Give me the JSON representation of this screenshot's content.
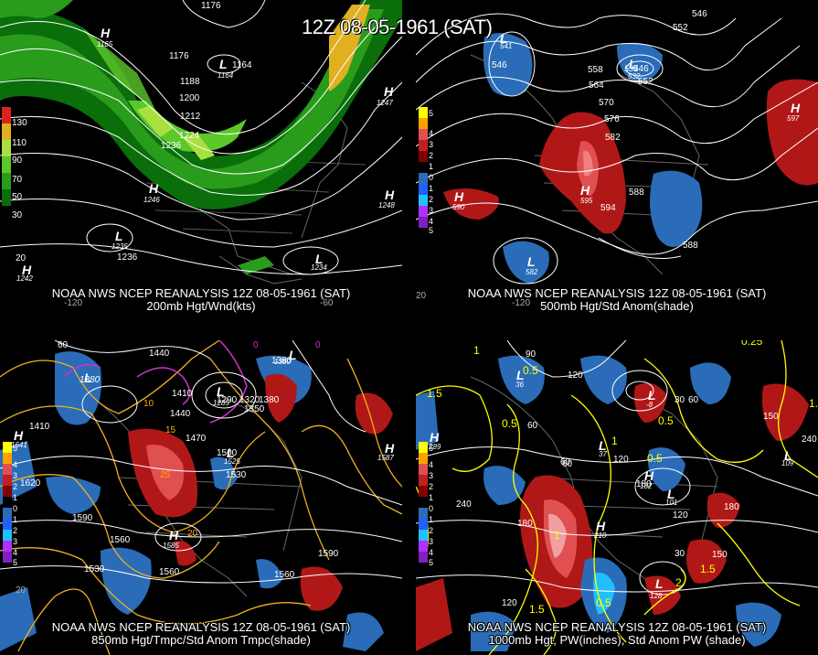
{
  "title": "12Z 08-05-1961 (SAT)",
  "panels": [
    {
      "caption_line1": "NOAA NWS NCEP REANALYSIS 12Z 08-05-1961 (SAT)",
      "caption_line2": "200mb Hgt/Wnd(kts)",
      "legend": [
        "130",
        "110",
        "90",
        "70",
        "50",
        "30"
      ],
      "contour_labels": [
        "1176",
        "1176",
        "1188",
        "1200",
        "1212",
        "1224",
        "1236",
        "1164",
        "1236",
        "20"
      ],
      "centers": [
        {
          "type": "H",
          "value": "1165"
        },
        {
          "type": "H",
          "value": "1247"
        },
        {
          "type": "H",
          "value": "1246"
        },
        {
          "type": "H",
          "value": "1248"
        },
        {
          "type": "L",
          "value": "1235"
        },
        {
          "type": "L",
          "value": "1234"
        },
        {
          "type": "H",
          "value": "1242"
        },
        {
          "type": "L",
          "value": "1164"
        }
      ],
      "axis_labels": [
        "-120",
        "-60"
      ]
    },
    {
      "caption_line1": "NOAA NWS NCEP REANALYSIS 12Z 08-05-1961 (SAT)",
      "caption_line2": "500mb Hgt/Std Anom(shade)",
      "legend": [
        "5",
        "4",
        "3",
        "2",
        "1",
        "0",
        "1",
        "2",
        "3",
        "4",
        "5"
      ],
      "contour_labels": [
        "546",
        "552",
        "546",
        "558",
        "564",
        "570",
        "576",
        "582",
        "588",
        "594",
        "546",
        "552",
        "588"
      ],
      "centers": [
        {
          "type": "L",
          "value": "541"
        },
        {
          "type": "L",
          "value": "532"
        },
        {
          "type": "L",
          "value": "534"
        },
        {
          "type": "H",
          "value": "597"
        },
        {
          "type": "H",
          "value": "590"
        },
        {
          "type": "H",
          "value": "595"
        },
        {
          "type": "L",
          "value": "582"
        }
      ],
      "axis_labels": [
        "20",
        "-120"
      ]
    },
    {
      "caption_line1": "NOAA NWS NCEP REANALYSIS 12Z 08-05-1961 (SAT)",
      "caption_line2": "850mb Hgt/Tmpc/Std Anom Tmpc(shade)",
      "legend": [
        "5",
        "4",
        "3",
        "2",
        "1",
        "0",
        "1",
        "2",
        "3",
        "4",
        "5"
      ],
      "contour_labels": [
        "60",
        "1440",
        "1380",
        "1410",
        "1440",
        "1290",
        "1320",
        "1380",
        "1350",
        "1410",
        "10",
        "15",
        "1470",
        "1500",
        "1530",
        "1620",
        "1590",
        "20",
        "1560",
        "1560",
        "1530",
        "1560",
        "1590",
        "25",
        "0",
        "0",
        "20"
      ],
      "centers": [
        {
          "type": "L",
          "value": "1380"
        },
        {
          "type": "L",
          "value": "1380"
        },
        {
          "type": "L",
          "value": "1285"
        },
        {
          "type": "L",
          "value": "1525"
        },
        {
          "type": "H",
          "value": "1641"
        },
        {
          "type": "H",
          "value": "1585"
        },
        {
          "type": "H",
          "value": "1587"
        }
      ],
      "axis_labels": [
        "20"
      ]
    },
    {
      "caption_line1": "NOAA NWS NCEP REANALYSIS 12Z 08-05-1961 (SAT)",
      "caption_line2": "1000mb Hgt, PW(inches), Std Anom PW (shade)",
      "legend": [
        "5",
        "4",
        "3",
        "2",
        "1",
        "0",
        "1",
        "2",
        "3",
        "4",
        "5"
      ],
      "contour_labels": [
        "1",
        "90",
        "120",
        "0.25",
        "1.5",
        "0.5",
        "0.5",
        "60",
        "30",
        "60",
        "0.5",
        "1",
        "0.5",
        "60",
        "120",
        "180",
        "150",
        "240",
        "240",
        "180",
        "120",
        "180",
        "150",
        "1.5",
        "60",
        "1.5",
        "2",
        "1",
        "0.5",
        "120",
        "30",
        "1.5"
      ],
      "centers": [
        {
          "type": "H",
          "value": "289"
        },
        {
          "type": "L",
          "value": "36"
        },
        {
          "type": "L",
          "value": "37"
        },
        {
          "type": "L",
          "value": "-8"
        },
        {
          "type": "H",
          "value": "210"
        },
        {
          "type": "H",
          "value": "182"
        },
        {
          "type": "L",
          "value": "101"
        },
        {
          "type": "L",
          "value": "109"
        },
        {
          "type": "L",
          "value": "128"
        }
      ],
      "axis_labels": []
    }
  ],
  "colors": {
    "wind_30": "#0a6e0a",
    "wind_50": "#2a9c1c",
    "wind_70": "#5cc82a",
    "wind_90": "#a8e040",
    "wind_110": "#e0b020",
    "wind_130": "#e02020",
    "anom_pos": "#b01818",
    "anom_pos_strong": "#e05050",
    "anom_neg": "#2a6cb8",
    "contour": "#ffffff",
    "temp_contour": "#f0b020",
    "pw_contour": "#ffff00"
  }
}
